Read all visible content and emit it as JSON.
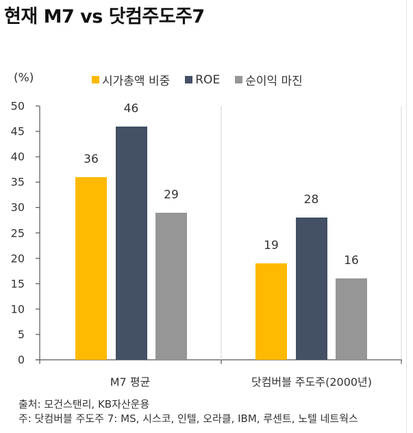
{
  "title": "현재 M7 vs 닷컴주도주7",
  "unit_label": "(%)",
  "legend": [
    {
      "label": "시가총액 비중",
      "color": "#FFB900"
    },
    {
      "label": "ROE",
      "color": "#435065"
    },
    {
      "label": "순이익 마진",
      "color": "#969696"
    }
  ],
  "footer": {
    "source": "출처: 모건스탠리, KB자산운용",
    "note": "주: 닷컴버블 주도주 7: MS, 시스코, 인텔, 오라클, IBM, 루센트, 노텔 네트웍스"
  },
  "chart_data": {
    "type": "bar",
    "title": "현재 M7 vs 닷컴주도주7",
    "xlabel": "",
    "ylabel": "(%)",
    "ylim": [
      0,
      50
    ],
    "yticks": [
      0,
      5,
      10,
      15,
      20,
      25,
      30,
      35,
      40,
      45,
      50
    ],
    "categories": [
      "M7 평균",
      "닷컴버블 주도주(2000년)"
    ],
    "series": [
      {
        "name": "시가총액 비중",
        "color": "#FFB900",
        "values": [
          36,
          19
        ]
      },
      {
        "name": "ROE",
        "color": "#435065",
        "values": [
          46,
          28
        ]
      },
      {
        "name": "순이익 마진",
        "color": "#969696",
        "values": [
          29,
          16
        ]
      }
    ],
    "data_labels": true,
    "grid": false,
    "legend_position": "top",
    "category_separators": true
  }
}
